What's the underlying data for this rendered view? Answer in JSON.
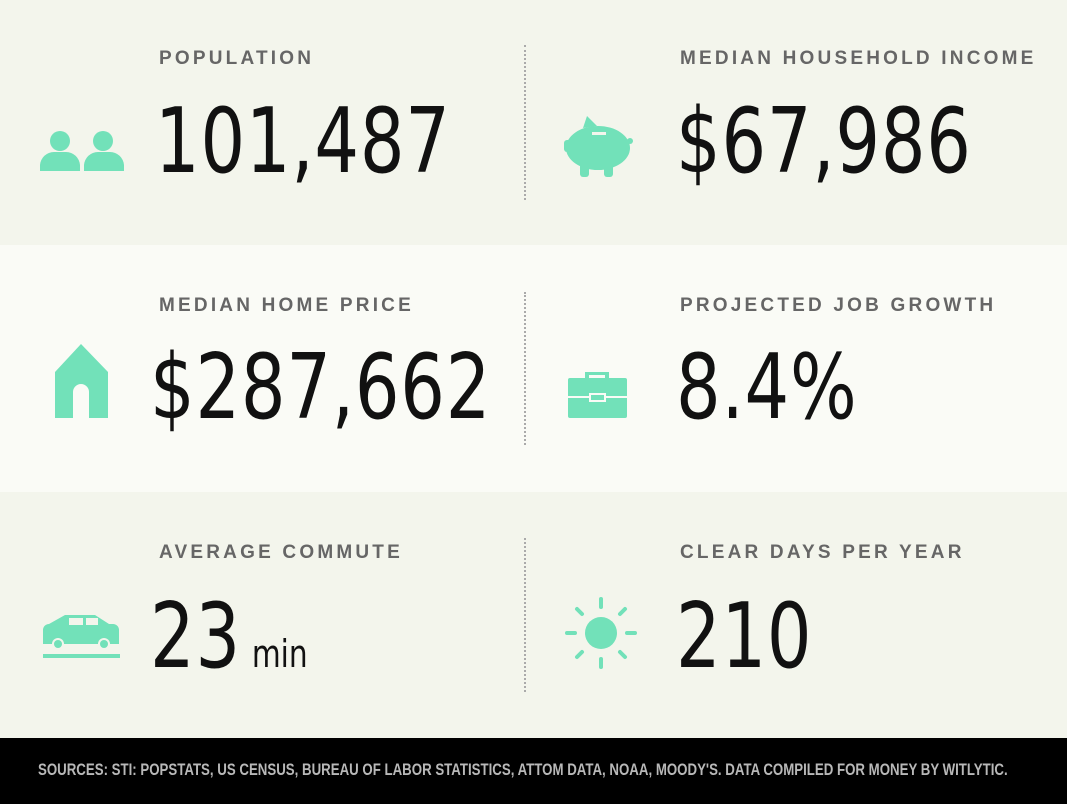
{
  "stats": [
    {
      "label": "POPULATION",
      "value": "101,487"
    },
    {
      "label": "MEDIAN HOUSEHOLD INCOME",
      "value": "$67,986"
    },
    {
      "label": "MEDIAN HOME PRICE",
      "value": "$287,662"
    },
    {
      "label": "PROJECTED JOB GROWTH",
      "value": "8.4%"
    },
    {
      "label": "AVERAGE COMMUTE",
      "value": "23",
      "unit": "min"
    },
    {
      "label": "CLEAR DAYS PER YEAR",
      "value": "210"
    }
  ],
  "footer": "SOURCES: STI: POPSTATS, US CENSUS, BUREAU OF LABOR STATISTICS, ATTOM DATA, NOAA, MOODY'S. DATA COMPILED FOR MONEY BY WITLYTIC."
}
